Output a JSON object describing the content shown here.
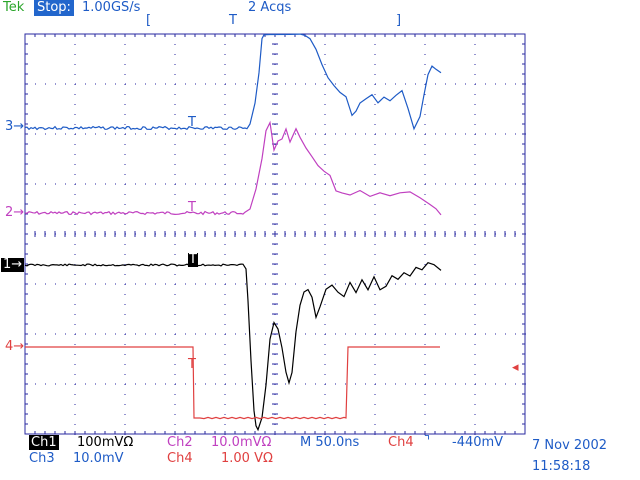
{
  "header": {
    "brand": "Tek",
    "mode": "Stop:",
    "sample_rate": "1.00GS/s",
    "acqs": "2 Acqs",
    "left_bracket": "[",
    "trigger_pos_marker": "T",
    "right_bracket": "]"
  },
  "channels": {
    "ch1": {
      "label": "Ch1",
      "scale": "100mV",
      "coupling": "Ω",
      "marker": "1",
      "color": "#000000"
    },
    "ch2": {
      "label": "Ch2",
      "scale": "10.0mV",
      "coupling": "Ω",
      "marker": "2",
      "color": "#c040c0"
    },
    "ch3": {
      "label": "Ch3",
      "scale": "10.0mV",
      "marker": "3",
      "color": "#1e5bc6"
    },
    "ch4": {
      "label": "Ch4",
      "scale": "1.00 V",
      "coupling": "Ω",
      "marker": "4",
      "color": "#e04040"
    }
  },
  "timebase": {
    "label": "M 50.0ns"
  },
  "trigger": {
    "source": "Ch4",
    "slope_icon": "falling-edge-icon",
    "slope_glyph": "⌝",
    "level": "-440mV"
  },
  "date": "7 Nov 2002",
  "time": "11:58:18",
  "trace_marker": "T",
  "colors": {
    "grid": "#2a2aa0",
    "background": "#ffffff"
  }
}
